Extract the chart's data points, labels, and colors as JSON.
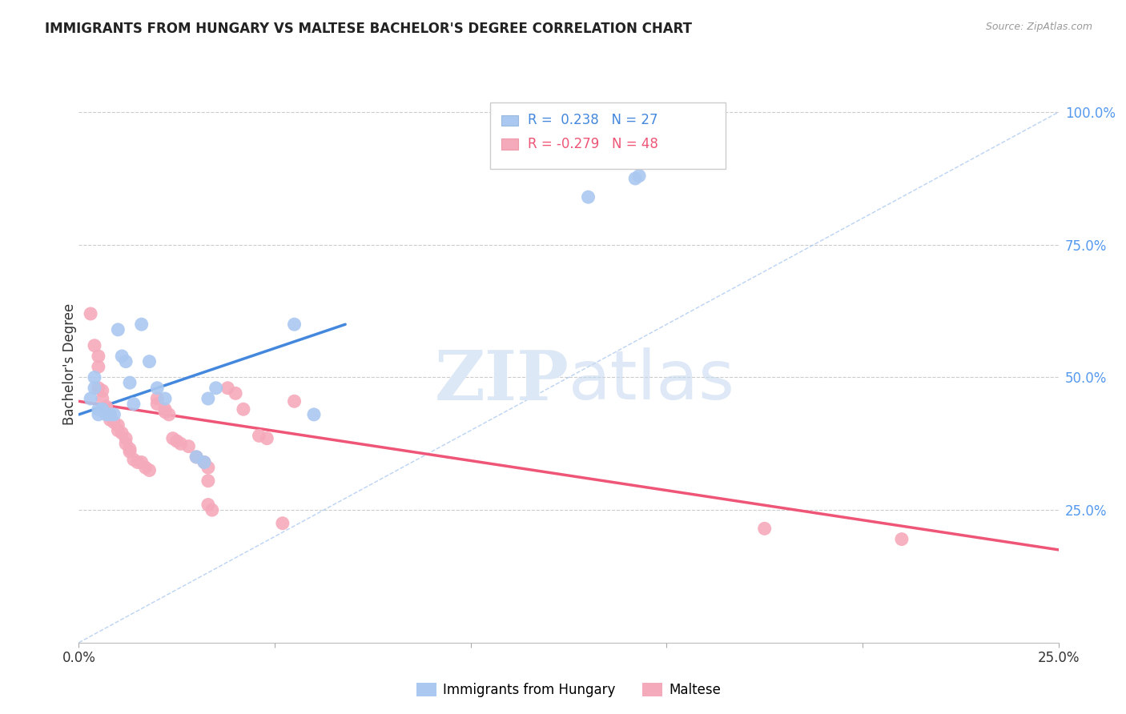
{
  "title": "IMMIGRANTS FROM HUNGARY VS MALTESE BACHELOR'S DEGREE CORRELATION CHART",
  "source": "Source: ZipAtlas.com",
  "ylabel": "Bachelor's Degree",
  "legend_label_blue": "Immigrants from Hungary",
  "legend_label_pink": "Maltese",
  "xmin": 0.0,
  "xmax": 0.25,
  "ymin": 0.0,
  "ymax": 1.05,
  "yticks": [
    0.25,
    0.5,
    0.75,
    1.0
  ],
  "ytick_labels": [
    "25.0%",
    "50.0%",
    "75.0%",
    "100.0%"
  ],
  "xticks": [
    0.0,
    0.05,
    0.1,
    0.15,
    0.2,
    0.25
  ],
  "xtick_labels": [
    "0.0%",
    "",
    "",
    "",
    "",
    "25.0%"
  ],
  "blue_color": "#aac8f0",
  "pink_color": "#f5aabb",
  "blue_line_color": "#4488dd",
  "pink_line_color": "#ee5577",
  "dashed_line_color": "#aac8f0",
  "blue_points_x": [
    0.003,
    0.004,
    0.004,
    0.005,
    0.005,
    0.006,
    0.007,
    0.008,
    0.009,
    0.01,
    0.011,
    0.012,
    0.013,
    0.014,
    0.016,
    0.018,
    0.02,
    0.022,
    0.03,
    0.032,
    0.033,
    0.035,
    0.055,
    0.06,
    0.13,
    0.142,
    0.143
  ],
  "blue_points_y": [
    0.46,
    0.48,
    0.5,
    0.43,
    0.44,
    0.44,
    0.43,
    0.43,
    0.43,
    0.59,
    0.54,
    0.53,
    0.49,
    0.45,
    0.6,
    0.53,
    0.48,
    0.46,
    0.35,
    0.34,
    0.46,
    0.48,
    0.6,
    0.43,
    0.84,
    0.875,
    0.88
  ],
  "pink_points_x": [
    0.003,
    0.004,
    0.005,
    0.005,
    0.005,
    0.006,
    0.006,
    0.007,
    0.007,
    0.008,
    0.008,
    0.009,
    0.01,
    0.01,
    0.011,
    0.012,
    0.012,
    0.013,
    0.013,
    0.014,
    0.015,
    0.016,
    0.017,
    0.018,
    0.02,
    0.02,
    0.022,
    0.022,
    0.023,
    0.024,
    0.025,
    0.026,
    0.028,
    0.03,
    0.032,
    0.033,
    0.033,
    0.033,
    0.034,
    0.038,
    0.04,
    0.042,
    0.046,
    0.048,
    0.052,
    0.055,
    0.175,
    0.21
  ],
  "pink_points_y": [
    0.62,
    0.56,
    0.54,
    0.52,
    0.48,
    0.475,
    0.46,
    0.445,
    0.44,
    0.43,
    0.42,
    0.415,
    0.41,
    0.4,
    0.395,
    0.385,
    0.375,
    0.365,
    0.36,
    0.345,
    0.34,
    0.34,
    0.33,
    0.325,
    0.46,
    0.45,
    0.44,
    0.435,
    0.43,
    0.385,
    0.38,
    0.375,
    0.37,
    0.35,
    0.34,
    0.33,
    0.305,
    0.26,
    0.25,
    0.48,
    0.47,
    0.44,
    0.39,
    0.385,
    0.225,
    0.455,
    0.215,
    0.195
  ],
  "blue_line_x": [
    0.0,
    0.068
  ],
  "blue_line_y": [
    0.43,
    0.6
  ],
  "pink_line_x": [
    0.0,
    0.25
  ],
  "pink_line_y": [
    0.455,
    0.175
  ],
  "dashed_line_x": [
    0.0,
    0.25
  ],
  "dashed_line_y": [
    0.0,
    1.0
  ],
  "watermark_zip": "ZIP",
  "watermark_atlas": "atlas",
  "background_color": "#ffffff"
}
